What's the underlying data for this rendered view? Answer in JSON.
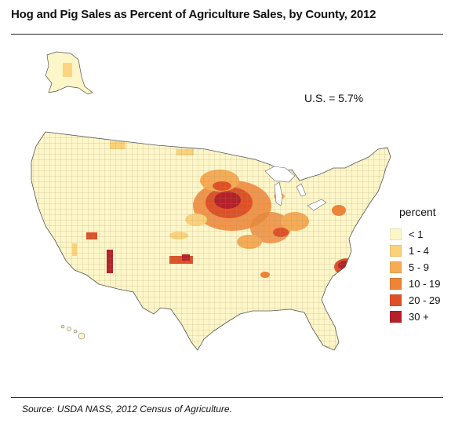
{
  "title": "Hog and Pig Sales as Percent of Agriculture Sales, by County, 2012",
  "us_stat": "U.S. = 5.7%",
  "legend": {
    "title": "percent",
    "items": [
      {
        "label": "< 1",
        "color": "#fdf6c8"
      },
      {
        "label": "1 - 4",
        "color": "#fbd27a"
      },
      {
        "label": "5 - 9",
        "color": "#f6ab55"
      },
      {
        "label": "10 - 19",
        "color": "#ee8436"
      },
      {
        "label": "20 - 29",
        "color": "#de5127"
      },
      {
        "label": "30 +",
        "color": "#b5202a"
      }
    ]
  },
  "source": "Source: USDA NASS, 2012 Census of Agriculture."
}
